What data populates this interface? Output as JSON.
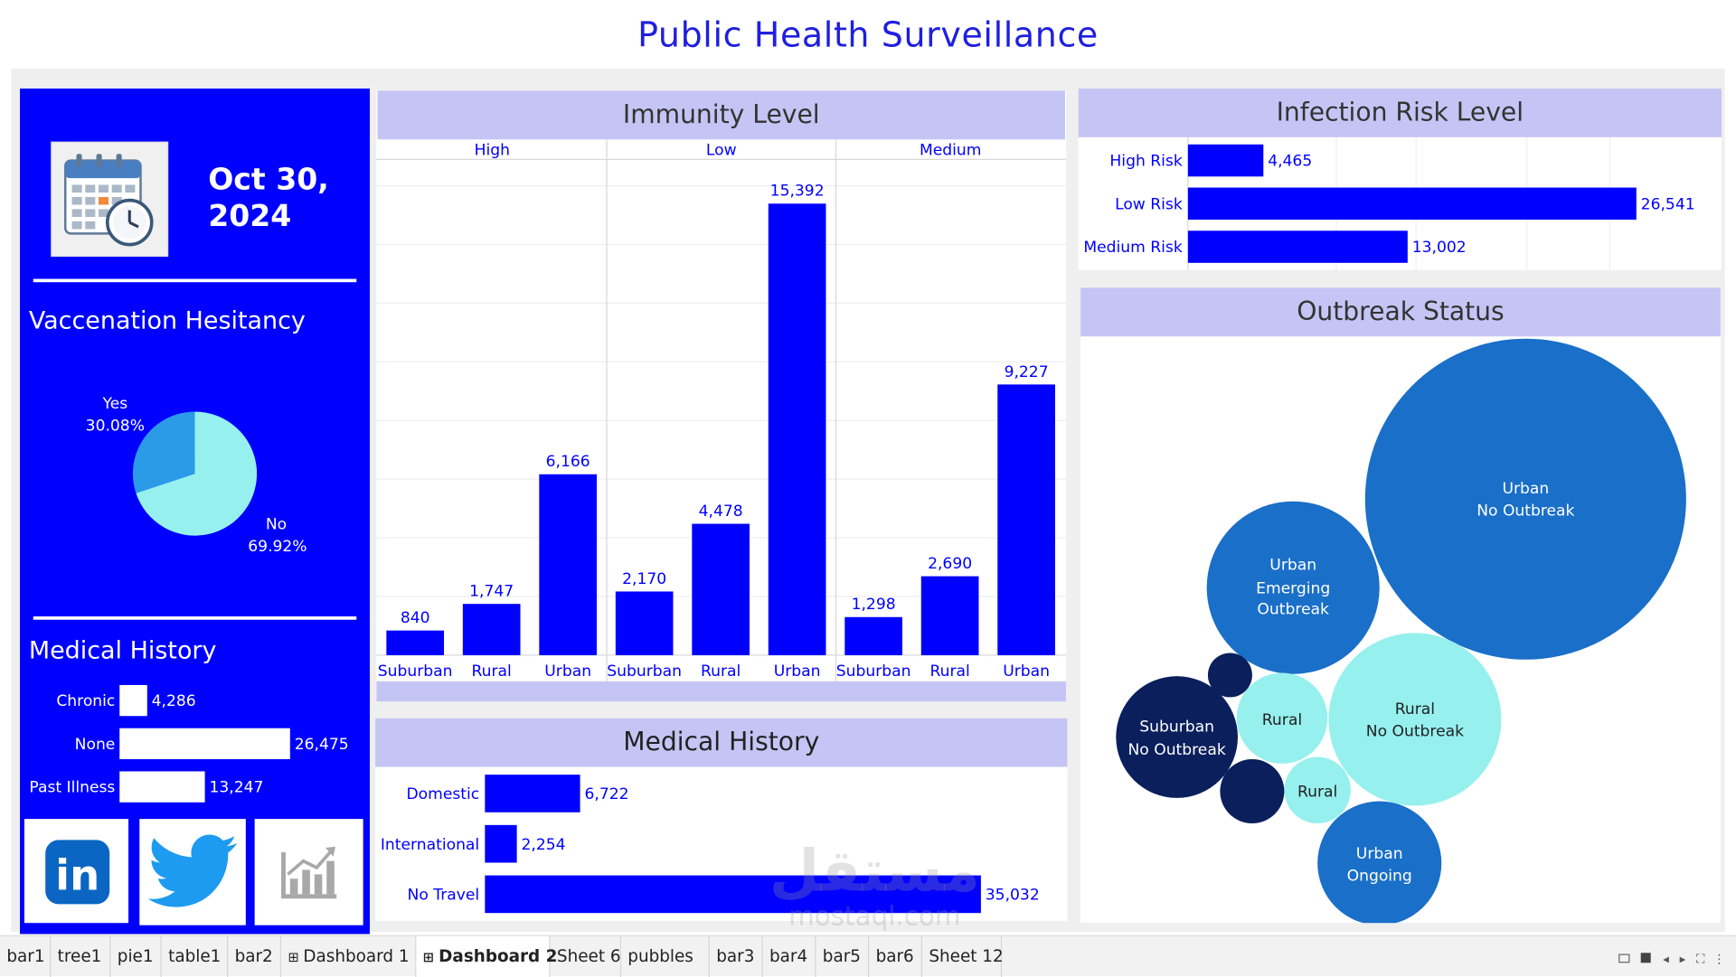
{
  "title": "Public Health Surveillance",
  "date": {
    "line1": "Oct 30,",
    "line2": "2024"
  },
  "vaccination": {
    "title": "Vaccenation Hesitancy",
    "yes_label": "Yes",
    "yes_pct": "30.08%",
    "yes_value": 30.08,
    "no_label": "No",
    "no_pct": "69.92%",
    "no_value": 69.92
  },
  "medical_history_left": {
    "title": "Medical History",
    "items": [
      {
        "label": "Chronic",
        "value": 4286,
        "text": "4,286"
      },
      {
        "label": "None",
        "value": 26475,
        "text": "26,475"
      },
      {
        "label": "Past Illness",
        "value": 13247,
        "text": "13,247"
      }
    ]
  },
  "immunity": {
    "title": "Immunity Level",
    "groups": [
      {
        "name": "High",
        "bars": [
          {
            "cat": "Suburban",
            "value": 840,
            "text": "840"
          },
          {
            "cat": "Rural",
            "value": 1747,
            "text": "1,747"
          },
          {
            "cat": "Urban",
            "value": 6166,
            "text": "6,166"
          }
        ]
      },
      {
        "name": "Low",
        "bars": [
          {
            "cat": "Suburban",
            "value": 2170,
            "text": "2,170"
          },
          {
            "cat": "Rural",
            "value": 4478,
            "text": "4,478"
          },
          {
            "cat": "Urban",
            "value": 15392,
            "text": "15,392"
          }
        ]
      },
      {
        "name": "Medium",
        "bars": [
          {
            "cat": "Suburban",
            "value": 1298,
            "text": "1,298"
          },
          {
            "cat": "Rural",
            "value": 2690,
            "text": "2,690"
          },
          {
            "cat": "Urban",
            "value": 9227,
            "text": "9,227"
          }
        ]
      }
    ]
  },
  "infection": {
    "title": "Infection Risk Level",
    "items": [
      {
        "label": "High Risk",
        "value": 4465,
        "text": "4,465"
      },
      {
        "label": "Low Risk",
        "value": 26541,
        "text": "26,541"
      },
      {
        "label": "Medium Risk",
        "value": 13002,
        "text": "13,002"
      }
    ]
  },
  "travel": {
    "title": "Medical History",
    "items": [
      {
        "label": "Domestic",
        "value": 6722,
        "text": "6,722"
      },
      {
        "label": "International",
        "value": 2254,
        "text": "2,254"
      },
      {
        "label": "No Travel",
        "value": 35032,
        "text": "35,032"
      }
    ]
  },
  "outbreak": {
    "title": "Outbreak Status",
    "bubbles": [
      {
        "line1": "Urban",
        "line2": "No Outbreak",
        "color": "#1a6fc8"
      },
      {
        "line1": "Urban",
        "line2": "Emerging",
        "line3": "Outbreak",
        "color": "#1a6fc8"
      },
      {
        "line1": "Rural",
        "line2": "No Outbreak",
        "color": "#96f0ee"
      },
      {
        "line1": "Suburban",
        "line2": "No Outbreak",
        "color": "#0a1f5c"
      },
      {
        "line1": "Rural",
        "color": "#96f0ee"
      },
      {
        "line1": "Rural",
        "color": "#96f0ee"
      },
      {
        "line1": "Urban",
        "line2": "Ongoing",
        "color": "#1a6fc8"
      },
      {
        "color": "#0a1f5c"
      },
      {
        "color": "#0a1f5c"
      }
    ]
  },
  "watermark": {
    "arabic": "مستقل",
    "latin": "mostaql.com"
  },
  "social": {
    "linkedin": "in"
  },
  "tabs": [
    {
      "label": "bar1"
    },
    {
      "label": "tree1"
    },
    {
      "label": "pie1"
    },
    {
      "label": "table1"
    },
    {
      "label": "bar2"
    },
    {
      "label": "Dashboard 1",
      "icon": "dashboard-icon"
    },
    {
      "label": "Dashboard 2",
      "icon": "dashboard-icon",
      "active": true
    },
    {
      "label": "Sheet 6"
    },
    {
      "label": "pubbles"
    },
    {
      "label": "bar3"
    },
    {
      "label": "bar4"
    },
    {
      "label": "bar5"
    },
    {
      "label": "bar6"
    },
    {
      "label": "Sheet 12"
    }
  ],
  "colors": {
    "accent": "#0000ff",
    "title": "#1f1fe0",
    "band": "#c5c5f5",
    "pie_yes": "#2b9be8",
    "pie_no": "#96f0ee"
  }
}
